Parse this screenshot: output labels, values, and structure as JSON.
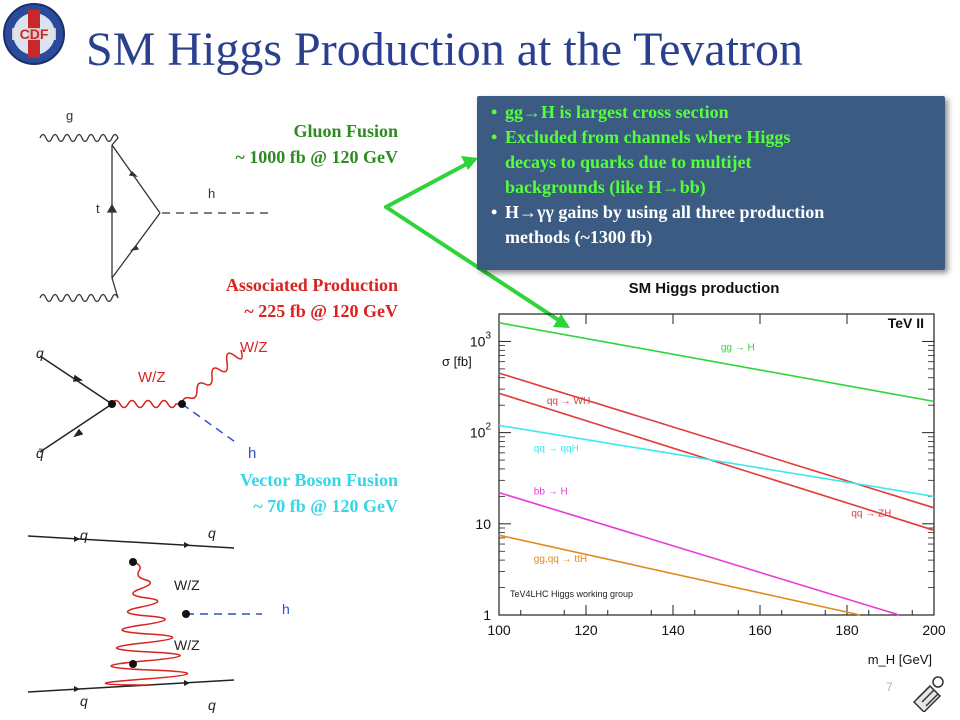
{
  "slide": {
    "title": "SM Higgs Production at the Tevatron",
    "page_number": "7",
    "logo_text": "CDF"
  },
  "processes": [
    {
      "name": "Gluon Fusion",
      "xsec": "~ 1000 fb @ 120 GeV",
      "color": "#2e8b21"
    },
    {
      "name": "Associated Production",
      "xsec": "~ 225 fb @ 120 GeV",
      "color": "#d8231e"
    },
    {
      "name": "Vector Boson Fusion",
      "xsec": "~ 70 fb @ 120 GeV",
      "color": "#36d6e6"
    }
  ],
  "callout": {
    "items": [
      {
        "lines": [
          "gg→H is largest cross section"
        ],
        "color": "#54ff3a"
      },
      {
        "lines": [
          "Excluded from channels where Higgs",
          "decays to quarks due to multijet",
          "backgrounds (like H→bb)"
        ],
        "color": "#54ff3a"
      },
      {
        "lines": [
          "H→γγ gains by using all three production",
          "methods (~1300 fb)"
        ],
        "color": "#ffffff"
      }
    ]
  },
  "diagrams": {
    "ggf": {
      "g": "g",
      "t": "t",
      "h": "h"
    },
    "assoc": {
      "q": "q",
      "qbar": "q̄",
      "wz1": "W/Z",
      "wz2": "W/Z",
      "h": "h"
    },
    "vbf": {
      "q1": "q",
      "q2": "q",
      "q3": "q",
      "q4": "q",
      "wz1": "W/Z",
      "wz2": "W/Z",
      "h": "h"
    }
  },
  "chart_data": {
    "type": "line",
    "title": "SM Higgs production",
    "xlabel": "m_H [GeV]",
    "ylabel": "σ [fb]",
    "xlim": [
      100,
      200
    ],
    "ylim": [
      1,
      2000
    ],
    "yscale": "log",
    "x_ticks": [
      100,
      120,
      140,
      160,
      180,
      200
    ],
    "y_tick_labels": [
      "1",
      "10",
      "10²",
      "10³"
    ],
    "annotations": [
      "TeV II",
      "TeV4LHC Higgs working group"
    ],
    "series": [
      {
        "name": "gg → H",
        "color": "#2fd43a",
        "x": [
          100,
          200
        ],
        "y": [
          1600,
          220
        ]
      },
      {
        "name": "qq → WH",
        "color": "#e23a3a",
        "x": [
          100,
          200
        ],
        "y": [
          450,
          15
        ]
      },
      {
        "name": "qq → ZH",
        "color": "#e23a3a",
        "x": [
          100,
          200
        ],
        "y": [
          270,
          8.5
        ]
      },
      {
        "name": "qq → qqH",
        "color": "#3ce8f0",
        "x": [
          100,
          200
        ],
        "y": [
          120,
          20
        ]
      },
      {
        "name": "bb → H",
        "color": "#e63cd6",
        "x": [
          100,
          192
        ],
        "y": [
          22,
          1
        ]
      },
      {
        "name": "gg,qq → ttH",
        "color": "#e08a1e",
        "x": [
          100,
          183
        ],
        "y": [
          7.5,
          1
        ]
      }
    ],
    "series_labels": [
      {
        "text": "gg → H",
        "at": [
          151,
          800
        ]
      },
      {
        "text": "qq → WH",
        "at": [
          111,
          205
        ]
      },
      {
        "text": "qq → qqH",
        "at": [
          108,
          62
        ]
      },
      {
        "text": "bb → H",
        "at": [
          108,
          21
        ]
      },
      {
        "text": "qq → ZH",
        "at": [
          181,
          12
        ]
      },
      {
        "text": "gg,qq → ttH",
        "at": [
          108,
          3.8
        ]
      }
    ]
  }
}
